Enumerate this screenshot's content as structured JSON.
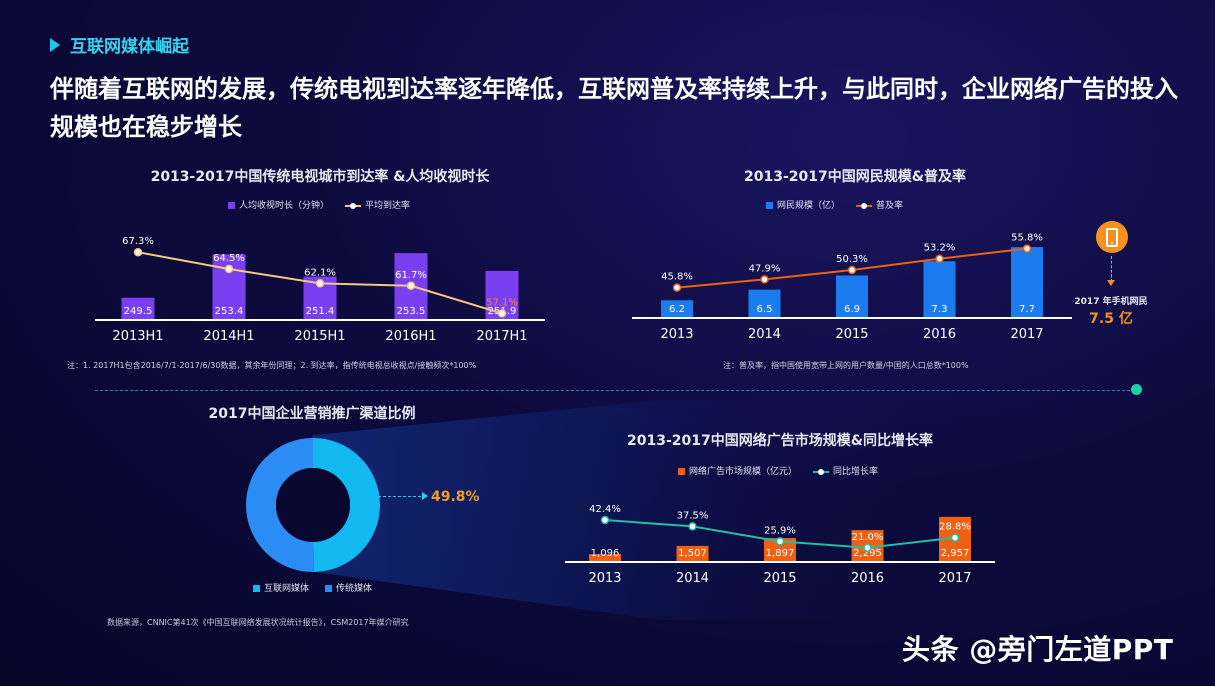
{
  "header": {
    "section_title": "互联网媒体崛起",
    "headline": "伴随着互联网的发展，传统电视到达率逐年降低，互联网普及率持续上升，与此同时，企业网络广告的投入规模也在稳步增长"
  },
  "colors": {
    "purple": "#7b3ff2",
    "line_yellow": "#f5c97a",
    "blue": "#1b7cf0",
    "orange": "#f06010",
    "teal": "#1ec0a8",
    "cyan": "#12b8f0",
    "donut_blue": "#2b8cf5"
  },
  "chart_data": [
    {
      "type": "bar",
      "id": "tv",
      "title": "2013-2017中国传统电视城市到达率 &人均收视时长",
      "categories": [
        "2013H1",
        "2014H1",
        "2015H1",
        "2016H1",
        "2017H1"
      ],
      "series": [
        {
          "name": "人均收视时长（分钟）",
          "kind": "bar",
          "values": [
            249.5,
            253.4,
            251.4,
            253.5,
            251.9
          ],
          "labels": [
            "249.5",
            "253.4",
            "251.4",
            "253.5",
            "251.9"
          ]
        },
        {
          "name": "平均到达率",
          "kind": "line",
          "values": [
            67.3,
            64.5,
            62.1,
            61.7,
            57.1
          ],
          "labels": [
            "67.3%",
            "64.5%",
            "62.1%",
            "61.7%",
            "57.1%"
          ]
        }
      ],
      "note": "注：1. 2017H1包含2016/7/1-2017/6/30数据，其余年份同理；2. 到达率，指传统电视总收视点/接触频次*100%"
    },
    {
      "type": "bar",
      "id": "netizen",
      "title": "2013-2017中国网民规模&普及率",
      "categories": [
        "2013",
        "2014",
        "2015",
        "2016",
        "2017"
      ],
      "series": [
        {
          "name": "网民规模（亿）",
          "kind": "bar",
          "values": [
            6.2,
            6.5,
            6.9,
            7.3,
            7.7
          ],
          "labels": [
            "6.2",
            "6.5",
            "6.9",
            "7.3",
            "7.7"
          ]
        },
        {
          "name": "普及率",
          "kind": "line",
          "values": [
            45.8,
            47.9,
            50.3,
            53.2,
            55.8
          ],
          "labels": [
            "45.8%",
            "47.9%",
            "50.3%",
            "53.2%",
            "55.8%"
          ]
        }
      ],
      "note": "注：普及率，指中国使用宽带上网的用户数量/中国的人口总数*100%",
      "annotation": {
        "label": "2017 年手机网民",
        "value": "7.5 亿"
      }
    },
    {
      "type": "pie",
      "id": "channel",
      "title": "2017中国企业营销推广渠道比例",
      "slices": [
        {
          "name": "互联网媒体",
          "value": 49.8
        },
        {
          "name": "传统媒体",
          "value": 50.2
        }
      ],
      "callout": "49.8%"
    },
    {
      "type": "bar",
      "id": "adspend",
      "title": "2013-2017中国网络广告市场规模&同比增长率",
      "categories": [
        "2013",
        "2014",
        "2015",
        "2016",
        "2017"
      ],
      "series": [
        {
          "name": "网络广告市场规模（亿元）",
          "kind": "bar",
          "values": [
            1096,
            1507,
            1897,
            2295,
            2957
          ],
          "labels": [
            "1,096",
            "1,507",
            "1,897",
            "2,295",
            "2,957"
          ]
        },
        {
          "name": "同比增长率",
          "kind": "line",
          "values": [
            42.4,
            37.5,
            25.9,
            21.0,
            28.8
          ],
          "labels": [
            "42.4%",
            "37.5%",
            "25.9%",
            "21.0%",
            "28.8%"
          ]
        }
      ]
    }
  ],
  "footer": {
    "source": "数据来源，CNNIC第41次《中国互联网络发展状况统计报告》，CSM2017年媒介研究",
    "watermark": "头条 @旁门左道PPT"
  }
}
